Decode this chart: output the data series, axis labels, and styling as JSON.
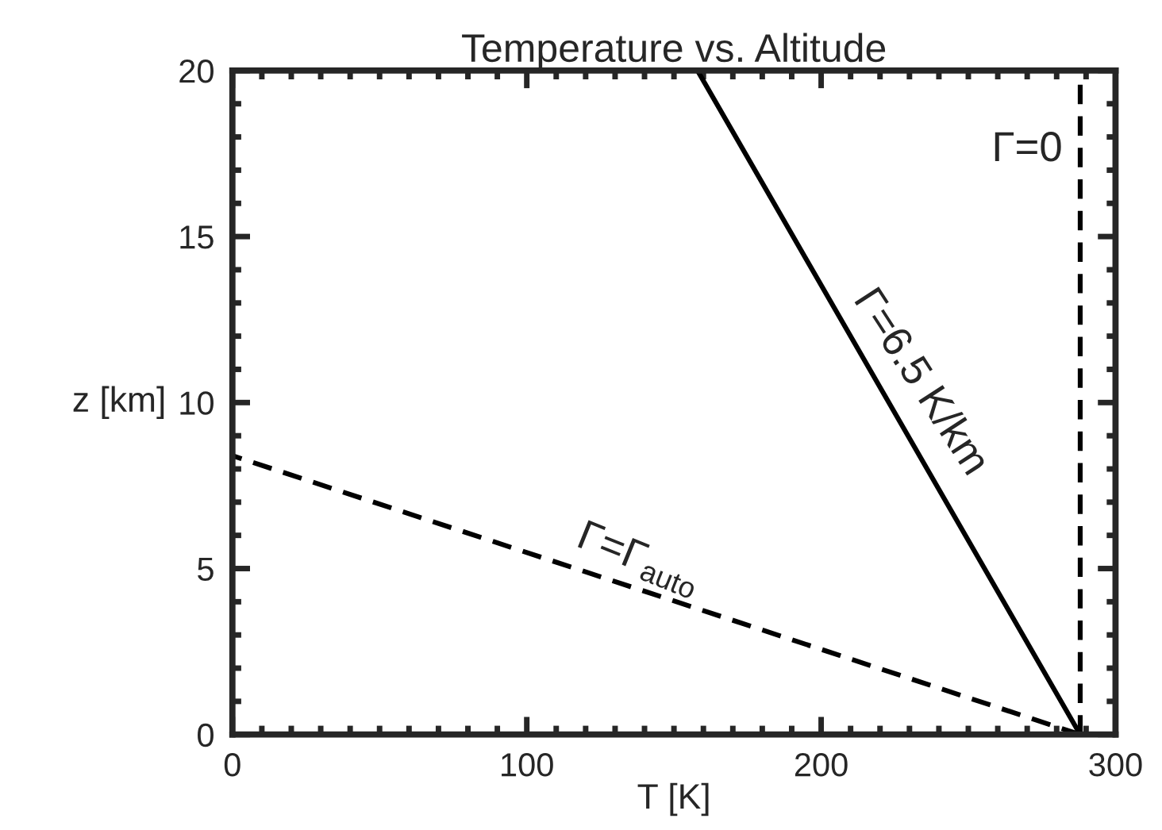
{
  "chart_data": {
    "type": "line",
    "title": "Temperature vs. Altitude",
    "xlabel": "T [K]",
    "ylabel": "z [km]",
    "series": [
      {
        "color": "#000000",
        "line_style": "solid",
        "x": [
          288,
          158
        ],
        "values": [
          0,
          20
        ]
      },
      {
        "color": "#000000",
        "line_style": "dashed",
        "x": [
          288,
          0
        ],
        "values": [
          0,
          8.4
        ]
      },
      {
        "color": "#000000",
        "line_style": "dashed",
        "x": [
          288,
          288
        ],
        "values": [
          0,
          20
        ]
      }
    ],
    "xlim": [
      0,
      300
    ],
    "ylim": [
      0,
      20
    ],
    "xticks": [
      0,
      100,
      200,
      300
    ],
    "yticks": [
      0,
      5,
      10,
      15,
      20
    ],
    "annotations": [
      {
        "text": "Γ=0",
        "x": 288,
        "y": 17.6
      },
      {
        "text": "Γ=6.5 K/km",
        "x": 223,
        "y": 10
      },
      {
        "text": "Γ=Γ$_{auto}$",
        "x": 144,
        "y": 4.2
      }
    ],
    "grid": false
  }
}
